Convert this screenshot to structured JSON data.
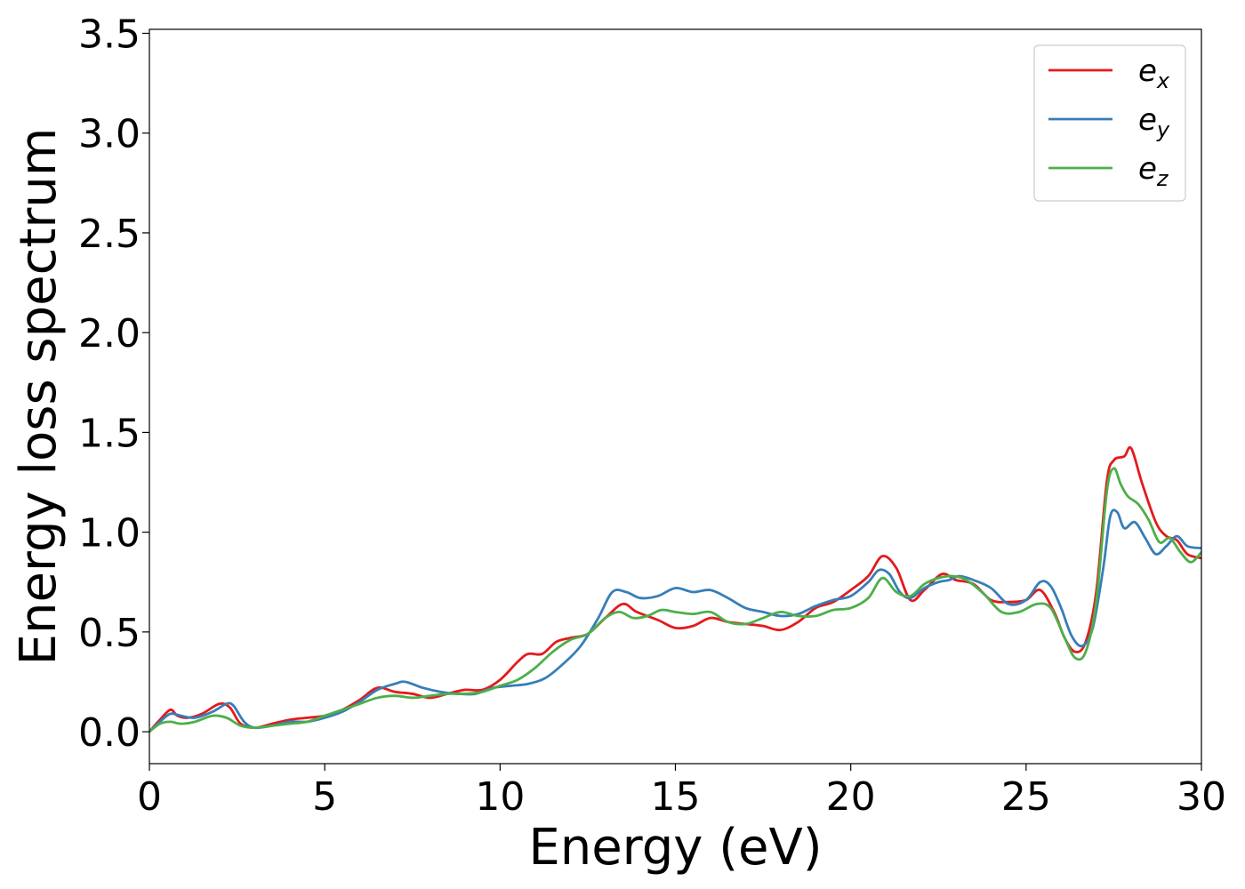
{
  "chart_data": {
    "type": "line",
    "xlabel": "Energy (eV)",
    "ylabel": "Energy loss spectrum",
    "xlim": [
      0,
      30
    ],
    "ylim": [
      -0.16,
      3.52
    ],
    "xticks": [
      0,
      5,
      10,
      15,
      20,
      25,
      30
    ],
    "yticks": [
      0.0,
      0.5,
      1.0,
      1.5,
      2.0,
      2.5,
      3.0,
      3.5
    ],
    "xtick_labels": [
      "0",
      "5",
      "10",
      "15",
      "20",
      "25",
      "30"
    ],
    "ytick_labels": [
      "0.0",
      "0.5",
      "1.0",
      "1.5",
      "2.0",
      "2.5",
      "3.0",
      "3.5"
    ],
    "grid": false,
    "legend_position": "top-right",
    "series": [
      {
        "name": "e_x",
        "label_base": "e",
        "label_sub": "x",
        "color": "#e41a1c",
        "x": [
          0,
          0.3,
          0.6,
          0.8,
          1.1,
          1.5,
          2.0,
          2.3,
          2.6,
          3.0,
          3.5,
          4.0,
          4.5,
          5.0,
          5.5,
          6.0,
          6.5,
          7.0,
          7.5,
          8.0,
          8.5,
          9.0,
          9.5,
          10.0,
          10.5,
          10.8,
          11.2,
          11.6,
          12.0,
          12.5,
          13.0,
          13.5,
          13.9,
          14.5,
          15.0,
          15.5,
          16.0,
          16.5,
          17.0,
          17.5,
          18.0,
          18.5,
          19.0,
          19.5,
          20.0,
          20.5,
          20.9,
          21.3,
          21.7,
          22.1,
          22.6,
          23.0,
          23.5,
          24.0,
          24.5,
          25.0,
          25.4,
          25.8,
          26.1,
          26.4,
          26.7,
          27.0,
          27.3,
          27.5,
          27.8,
          28.0,
          28.3,
          28.7,
          29.0,
          29.3,
          29.6,
          30.0
        ],
        "y": [
          0.0,
          0.06,
          0.11,
          0.08,
          0.07,
          0.09,
          0.14,
          0.12,
          0.04,
          0.02,
          0.04,
          0.06,
          0.07,
          0.08,
          0.11,
          0.16,
          0.22,
          0.2,
          0.19,
          0.17,
          0.19,
          0.21,
          0.21,
          0.26,
          0.35,
          0.39,
          0.39,
          0.45,
          0.47,
          0.49,
          0.57,
          0.64,
          0.6,
          0.56,
          0.52,
          0.53,
          0.57,
          0.55,
          0.54,
          0.53,
          0.51,
          0.55,
          0.62,
          0.65,
          0.71,
          0.78,
          0.88,
          0.82,
          0.66,
          0.71,
          0.79,
          0.76,
          0.74,
          0.66,
          0.65,
          0.66,
          0.71,
          0.6,
          0.47,
          0.4,
          0.45,
          0.7,
          1.25,
          1.36,
          1.38,
          1.42,
          1.25,
          1.05,
          0.98,
          0.96,
          0.89,
          0.87
        ]
      },
      {
        "name": "e_y",
        "label_base": "e",
        "label_sub": "y",
        "color": "#377eb8",
        "x": [
          0,
          0.3,
          0.6,
          0.9,
          1.3,
          1.8,
          2.2,
          2.4,
          2.7,
          3.0,
          3.5,
          4.0,
          4.5,
          5.0,
          5.5,
          6.0,
          6.5,
          7.0,
          7.3,
          7.8,
          8.3,
          8.8,
          9.3,
          9.8,
          10.3,
          10.8,
          11.3,
          11.8,
          12.3,
          12.8,
          13.2,
          13.6,
          14.0,
          14.5,
          15.0,
          15.5,
          16.0,
          16.5,
          17.0,
          17.5,
          18.0,
          18.5,
          19.0,
          19.5,
          20.0,
          20.5,
          20.8,
          21.1,
          21.4,
          21.7,
          22.1,
          22.5,
          22.8,
          23.1,
          23.5,
          24.0,
          24.5,
          25.0,
          25.4,
          25.7,
          26.0,
          26.3,
          26.6,
          26.9,
          27.2,
          27.4,
          27.6,
          27.8,
          28.1,
          28.4,
          28.7,
          29.0,
          29.3,
          29.6,
          30.0
        ],
        "y": [
          0.0,
          0.05,
          0.09,
          0.08,
          0.07,
          0.1,
          0.14,
          0.13,
          0.05,
          0.02,
          0.03,
          0.05,
          0.05,
          0.07,
          0.1,
          0.15,
          0.21,
          0.24,
          0.25,
          0.22,
          0.2,
          0.19,
          0.19,
          0.22,
          0.23,
          0.24,
          0.27,
          0.34,
          0.43,
          0.57,
          0.7,
          0.7,
          0.67,
          0.68,
          0.72,
          0.7,
          0.71,
          0.67,
          0.62,
          0.6,
          0.58,
          0.59,
          0.63,
          0.66,
          0.68,
          0.75,
          0.81,
          0.79,
          0.7,
          0.67,
          0.72,
          0.75,
          0.76,
          0.78,
          0.76,
          0.72,
          0.64,
          0.66,
          0.75,
          0.73,
          0.62,
          0.48,
          0.43,
          0.52,
          0.82,
          1.08,
          1.1,
          1.02,
          1.05,
          0.97,
          0.89,
          0.93,
          0.98,
          0.93,
          0.92
        ]
      },
      {
        "name": "e_z",
        "label_base": "e",
        "label_sub": "z",
        "color": "#4daf4a",
        "x": [
          0,
          0.3,
          0.6,
          0.9,
          1.3,
          1.8,
          2.2,
          2.6,
          3.0,
          3.5,
          4.0,
          4.5,
          5.0,
          5.5,
          6.0,
          6.5,
          7.0,
          7.5,
          8.0,
          8.5,
          9.0,
          9.5,
          10.0,
          10.5,
          11.0,
          11.5,
          12.0,
          12.5,
          13.0,
          13.4,
          13.8,
          14.2,
          14.6,
          15.0,
          15.5,
          16.0,
          16.5,
          17.0,
          17.5,
          18.0,
          18.5,
          19.0,
          19.5,
          20.0,
          20.5,
          20.9,
          21.3,
          21.7,
          22.1,
          22.5,
          22.9,
          23.3,
          23.8,
          24.3,
          24.8,
          25.3,
          25.7,
          26.1,
          26.4,
          26.7,
          27.0,
          27.3,
          27.5,
          27.7,
          27.9,
          28.2,
          28.5,
          28.8,
          29.1,
          29.4,
          29.7,
          30.0
        ],
        "y": [
          0.0,
          0.04,
          0.05,
          0.04,
          0.05,
          0.08,
          0.07,
          0.03,
          0.02,
          0.03,
          0.04,
          0.05,
          0.08,
          0.11,
          0.14,
          0.17,
          0.18,
          0.17,
          0.18,
          0.19,
          0.19,
          0.2,
          0.23,
          0.26,
          0.32,
          0.4,
          0.46,
          0.49,
          0.57,
          0.6,
          0.57,
          0.58,
          0.61,
          0.6,
          0.59,
          0.6,
          0.55,
          0.54,
          0.57,
          0.6,
          0.58,
          0.58,
          0.61,
          0.62,
          0.67,
          0.77,
          0.7,
          0.68,
          0.74,
          0.77,
          0.78,
          0.76,
          0.69,
          0.6,
          0.6,
          0.64,
          0.62,
          0.47,
          0.37,
          0.4,
          0.65,
          1.2,
          1.32,
          1.24,
          1.18,
          1.14,
          1.06,
          0.95,
          0.97,
          0.9,
          0.85,
          0.9
        ]
      }
    ]
  }
}
